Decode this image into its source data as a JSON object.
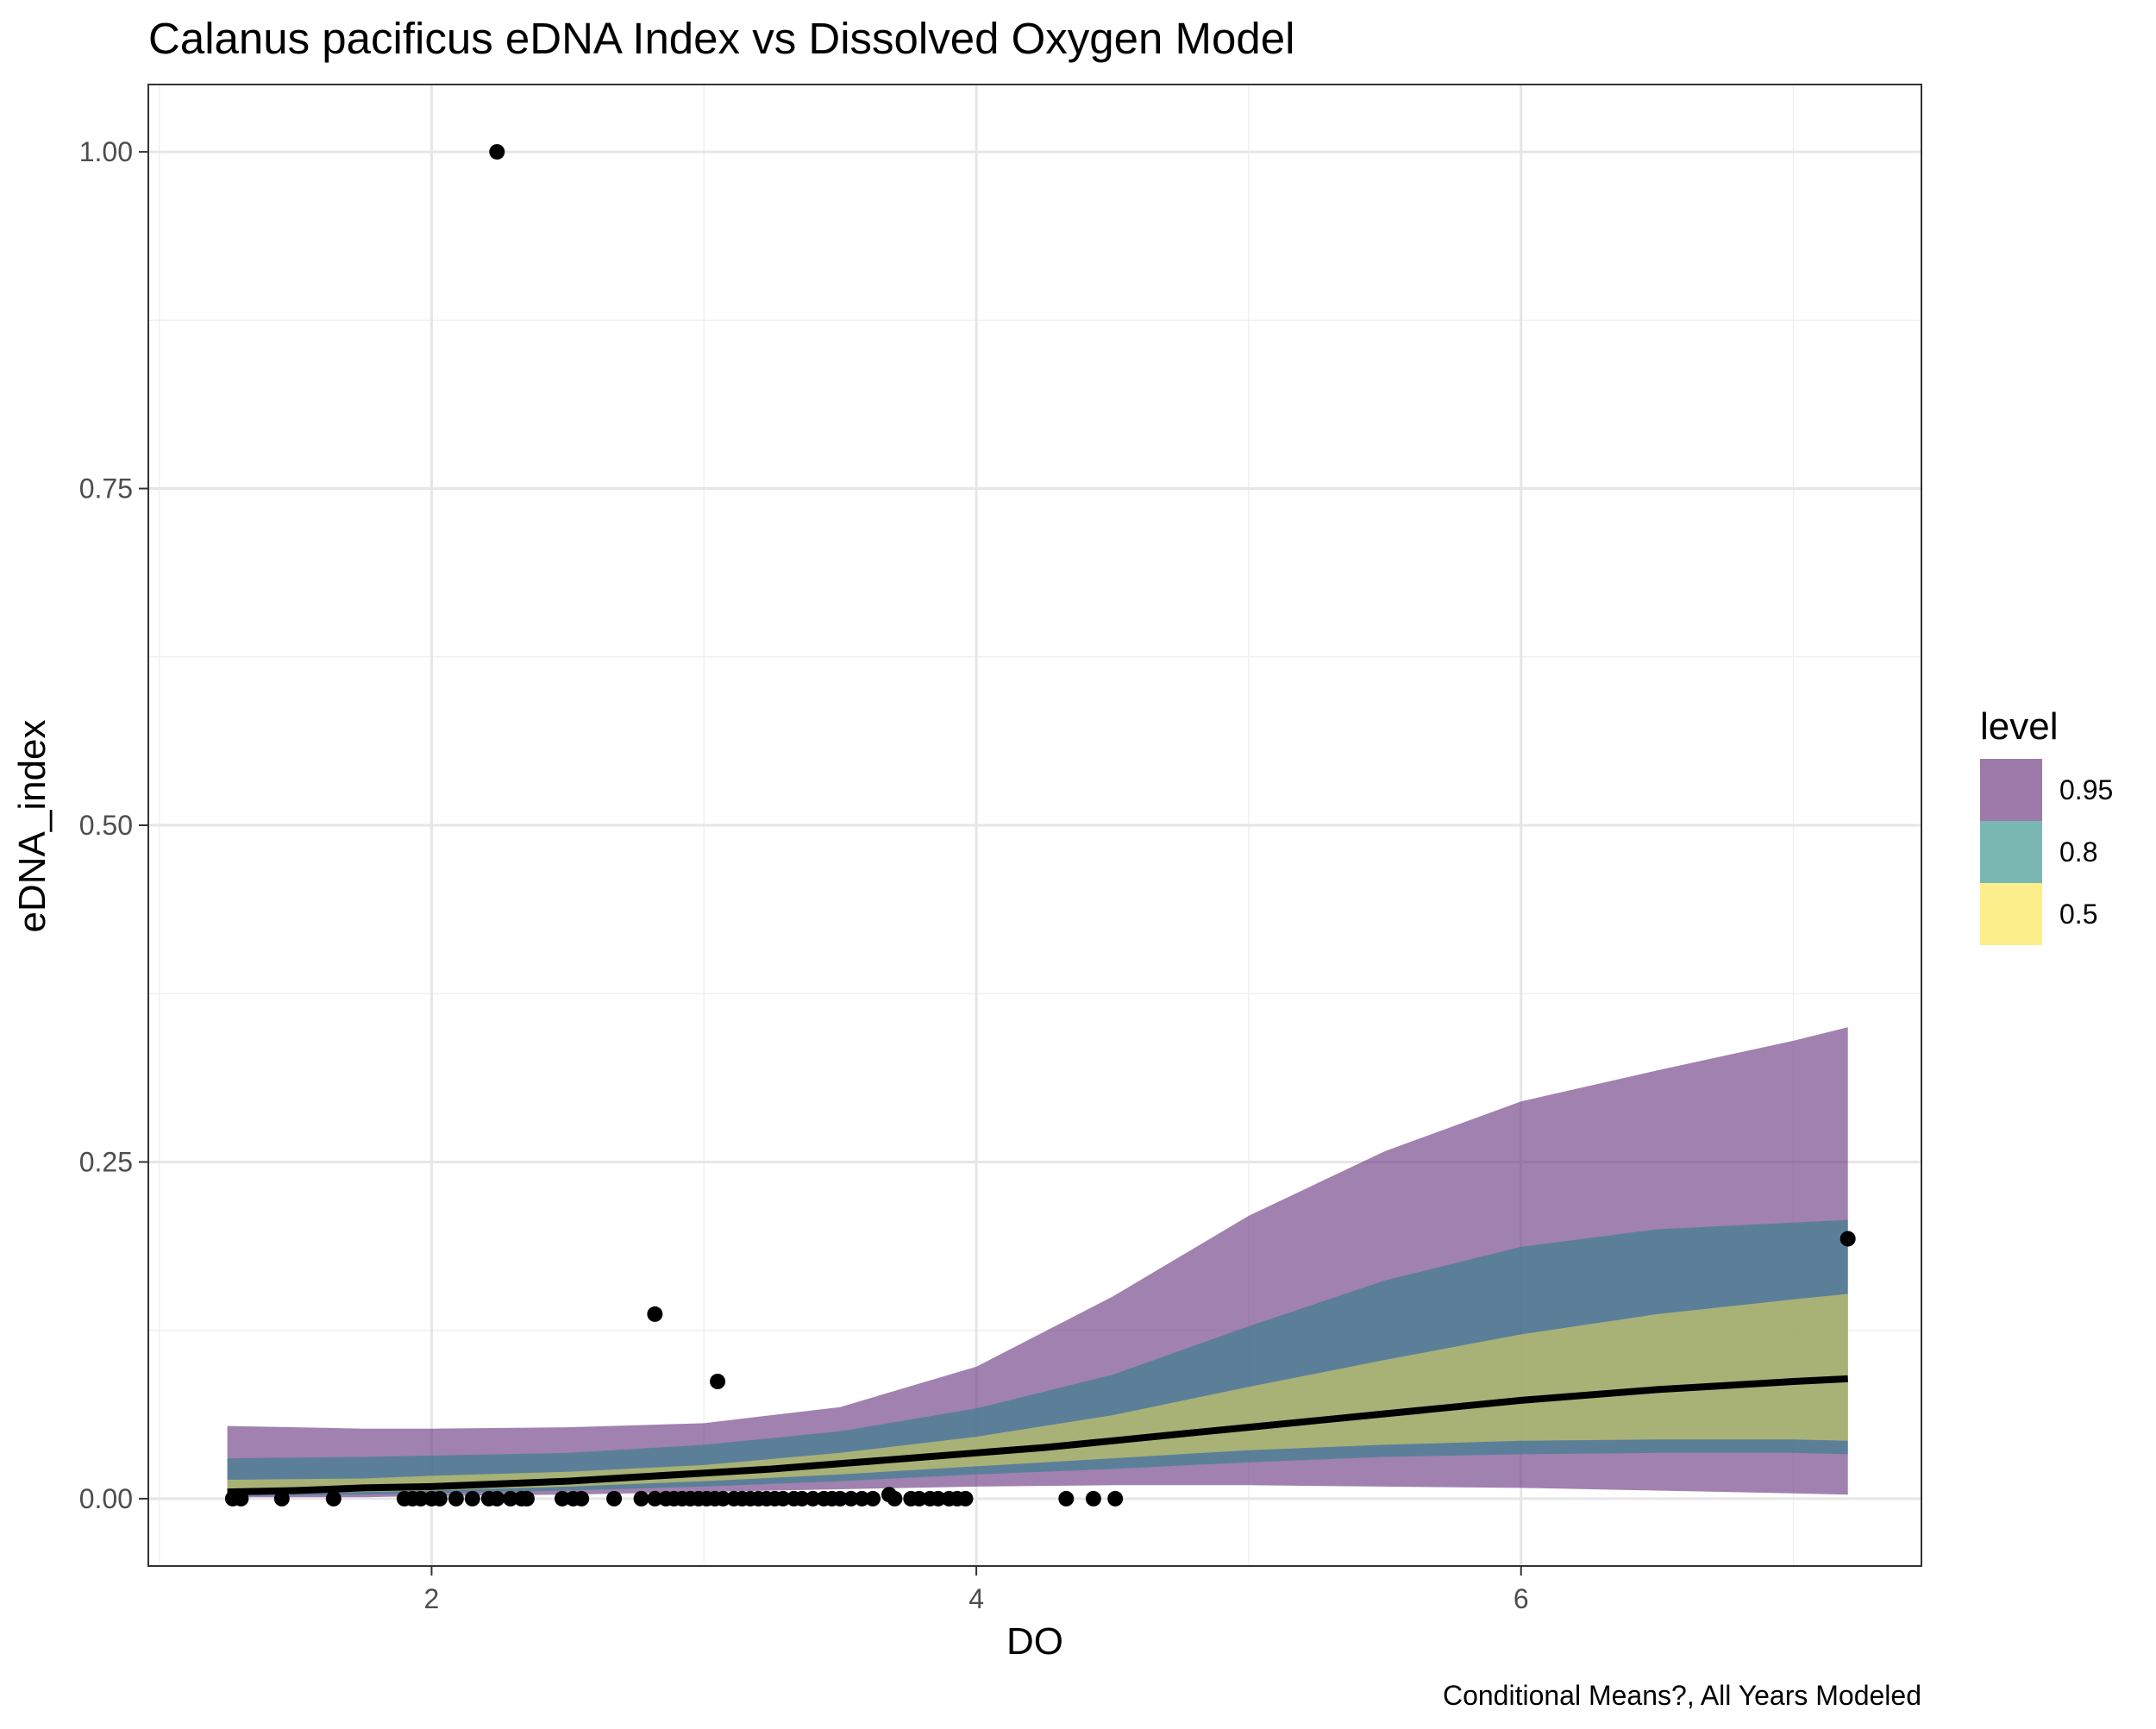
{
  "chart_data": {
    "type": "line",
    "title": "Calanus pacificus eDNA Index vs Dissolved Oxygen Model",
    "xlabel": "DO",
    "ylabel": "eDNA_index",
    "caption": "Conditional Means?, All Years Modeled",
    "xlim": [
      0.96,
      7.47
    ],
    "ylim": [
      -0.05,
      1.05
    ],
    "x_ticks": [
      2,
      4,
      6
    ],
    "x_tick_labels": [
      "2",
      "4",
      "6"
    ],
    "y_ticks": [
      0,
      0.25,
      0.5,
      0.75,
      1.0
    ],
    "y_tick_labels": [
      "0.00",
      "0.25",
      "0.50",
      "0.75",
      "1.00"
    ],
    "grid": true,
    "legend": {
      "title": "level",
      "placement": "right",
      "entries": [
        {
          "label": "0.95",
          "color": "#7e4e8e"
        },
        {
          "label": "0.8",
          "color": "#4e9f9a"
        },
        {
          "label": "0.5",
          "color": "#fae864"
        }
      ]
    },
    "ribbons": [
      {
        "name": "0.95",
        "color": "#6e3d84",
        "opacity": 0.65,
        "x": [
          1.25,
          1.75,
          2.0,
          2.5,
          3.0,
          3.5,
          4.0,
          4.5,
          5.0,
          5.5,
          6.0,
          6.5,
          7.0,
          7.2
        ],
        "lower": [
          0.001,
          0.001,
          0.002,
          0.003,
          0.005,
          0.007,
          0.009,
          0.01,
          0.01,
          0.009,
          0.008,
          0.006,
          0.004,
          0.003
        ],
        "upper": [
          0.054,
          0.052,
          0.052,
          0.053,
          0.056,
          0.068,
          0.098,
          0.15,
          0.21,
          0.258,
          0.295,
          0.318,
          0.34,
          0.35
        ]
      },
      {
        "name": "0.8",
        "color": "#2f7f8b",
        "opacity": 0.6,
        "x": [
          1.25,
          1.75,
          2.0,
          2.5,
          3.0,
          3.5,
          4.0,
          4.5,
          5.0,
          5.5,
          6.0,
          6.5,
          7.0,
          7.2
        ],
        "lower": [
          0.002,
          0.003,
          0.004,
          0.006,
          0.009,
          0.013,
          0.018,
          0.022,
          0.027,
          0.031,
          0.033,
          0.034,
          0.034,
          0.033
        ],
        "upper": [
          0.03,
          0.031,
          0.032,
          0.034,
          0.04,
          0.05,
          0.067,
          0.092,
          0.128,
          0.162,
          0.187,
          0.2,
          0.205,
          0.207
        ]
      },
      {
        "name": "0.5",
        "color": "#e8dc5a",
        "opacity": 0.55,
        "x": [
          1.25,
          1.75,
          2.0,
          2.5,
          3.0,
          3.5,
          4.0,
          4.5,
          5.0,
          5.5,
          6.0,
          6.5,
          7.0,
          7.2
        ],
        "lower": [
          0.004,
          0.005,
          0.006,
          0.009,
          0.013,
          0.018,
          0.024,
          0.03,
          0.036,
          0.04,
          0.043,
          0.044,
          0.044,
          0.043
        ],
        "upper": [
          0.014,
          0.015,
          0.017,
          0.02,
          0.025,
          0.034,
          0.046,
          0.062,
          0.083,
          0.103,
          0.122,
          0.137,
          0.148,
          0.152
        ]
      }
    ],
    "series": [
      {
        "name": "",
        "type": "line",
        "color": "#000000",
        "x": [
          1.25,
          1.5,
          1.75,
          2.0,
          2.25,
          2.5,
          2.75,
          3.0,
          3.25,
          3.5,
          3.75,
          4.0,
          4.25,
          4.5,
          4.75,
          5.0,
          5.25,
          5.5,
          5.75,
          6.0,
          6.25,
          6.5,
          6.75,
          7.0,
          7.2
        ],
        "y": [
          0.005,
          0.006,
          0.008,
          0.009,
          0.011,
          0.013,
          0.016,
          0.019,
          0.022,
          0.026,
          0.03,
          0.034,
          0.038,
          0.043,
          0.048,
          0.053,
          0.058,
          0.063,
          0.068,
          0.073,
          0.077,
          0.081,
          0.084,
          0.087,
          0.089
        ]
      }
    ],
    "points": {
      "color": "#000000",
      "x": [
        1.27,
        1.3,
        1.45,
        1.64,
        1.9,
        1.93,
        1.96,
        2.0,
        2.03,
        2.09,
        2.15,
        2.21,
        2.24,
        2.29,
        2.33,
        2.35,
        2.48,
        2.52,
        2.55,
        2.67,
        2.77,
        2.82,
        2.86,
        2.89,
        2.92,
        2.95,
        2.98,
        3.01,
        3.04,
        3.07,
        3.11,
        3.14,
        3.17,
        3.2,
        3.23,
        3.26,
        3.29,
        3.33,
        3.36,
        3.4,
        3.44,
        3.47,
        3.5,
        3.54,
        3.58,
        3.62,
        3.68,
        3.7,
        3.76,
        3.79,
        3.83,
        3.86,
        3.9,
        3.93,
        3.96,
        4.33,
        4.43,
        4.51,
        2.24,
        2.82,
        3.05,
        7.2
      ],
      "y": [
        0,
        0,
        0,
        0,
        0,
        0,
        0,
        0,
        0,
        0,
        0,
        0,
        0,
        0,
        0,
        0,
        0,
        0,
        0,
        0,
        0,
        0,
        0,
        0,
        0,
        0,
        0,
        0,
        0,
        0,
        0,
        0,
        0,
        0,
        0,
        0,
        0,
        0,
        0,
        0,
        0,
        0,
        0,
        0,
        0,
        0,
        0.003,
        0,
        0,
        0,
        0,
        0,
        0,
        0,
        0,
        0,
        0,
        0,
        1.0,
        0.137,
        0.087,
        0.193
      ]
    }
  }
}
